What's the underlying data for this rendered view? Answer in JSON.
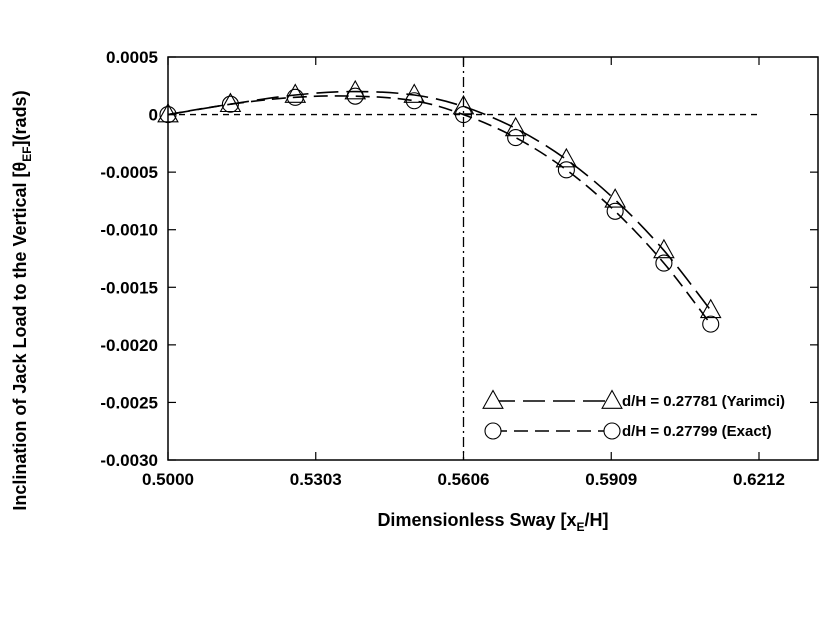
{
  "chart_data": {
    "type": "line",
    "xlabel": {
      "main": "Dimensionless Sway [x",
      "sub": "E",
      "tail": "/H]"
    },
    "ylabel": {
      "main": "Inclination of Jack Load to the Vertical [θ",
      "sub": "EF",
      "tail": "](rads)"
    },
    "xlim": [
      0.5,
      0.6333
    ],
    "ylim": [
      -0.003,
      0.0005
    ],
    "x_ticks": [
      {
        "value": 0.5,
        "label": "0.5000"
      },
      {
        "value": 0.5303,
        "label": "0.5303"
      },
      {
        "value": 0.5606,
        "label": "0.5606"
      },
      {
        "value": 0.5909,
        "label": "0.5909"
      },
      {
        "value": 0.6212,
        "label": "0.6212"
      }
    ],
    "y_ticks": [
      {
        "value": 0.0005,
        "label": "0.0005"
      },
      {
        "value": 0,
        "label": "0"
      },
      {
        "value": -0.0005,
        "label": "-0.0005"
      },
      {
        "value": -0.001,
        "label": "-0.0010"
      },
      {
        "value": -0.0015,
        "label": "-0.0015"
      },
      {
        "value": -0.002,
        "label": "-0.0020"
      },
      {
        "value": -0.0025,
        "label": "-0.0025"
      },
      {
        "value": -0.003,
        "label": "-0.0030"
      }
    ],
    "reference_lines": [
      {
        "orientation": "horizontal",
        "value": 0,
        "x_end": 0.6212,
        "style": "dashed"
      },
      {
        "orientation": "vertical",
        "value": 0.5606,
        "style": "dash-dot"
      }
    ],
    "series": [
      {
        "name": "d/H = 0.27781 (Yarimci)",
        "marker": "triangle",
        "line": "long-dash",
        "x": [
          0.5,
          0.5128,
          0.5261,
          0.5384,
          0.5505,
          0.5606,
          0.5713,
          0.5817,
          0.5917,
          0.6017,
          0.6113
        ],
        "y": [
          0.0,
          9e-05,
          0.00017,
          0.0002,
          0.00017,
          7e-05,
          -0.00012,
          -0.00039,
          -0.00074,
          -0.00118,
          -0.0017
        ]
      },
      {
        "name": "d/H = 0.27799 (Exact)",
        "marker": "circle",
        "line": "dash",
        "x": [
          0.5,
          0.5128,
          0.5261,
          0.5384,
          0.5505,
          0.5606,
          0.5713,
          0.5817,
          0.5917,
          0.6017,
          0.6113
        ],
        "y": [
          0.0,
          9e-05,
          0.00015,
          0.00016,
          0.00012,
          0.0,
          -0.0002,
          -0.00048,
          -0.00084,
          -0.00129,
          -0.00182
        ]
      }
    ],
    "legend": {
      "placement": "lower-right inside"
    }
  }
}
